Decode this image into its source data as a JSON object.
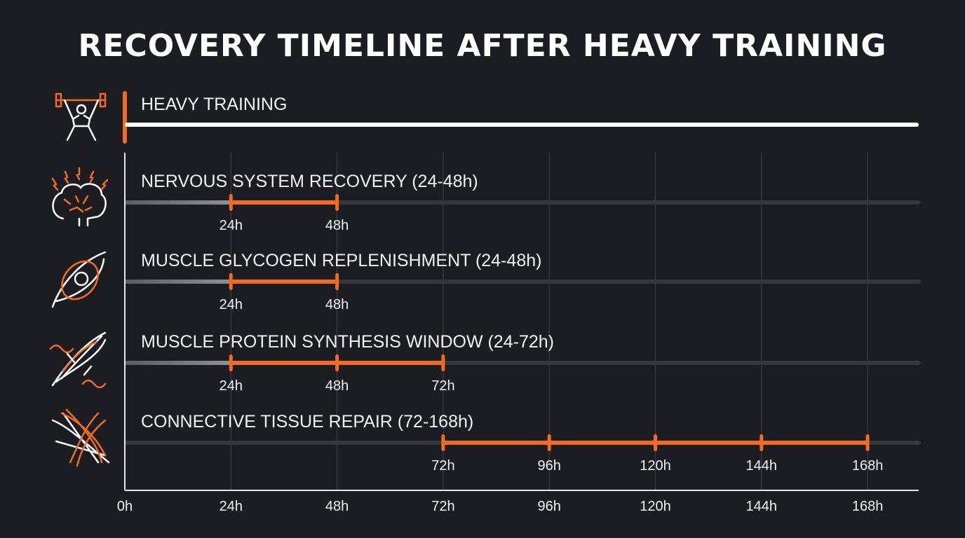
{
  "chart_data": {
    "type": "timeline",
    "title": "RECOVERY TIMELINE AFTER HEAVY TRAINING",
    "start_event": {
      "label": "HEAVY TRAINING",
      "icon": "weightlifter-icon"
    },
    "xlim": [
      0,
      180
    ],
    "x_unit": "h",
    "x_ticks": [
      "0h",
      "24h",
      "48h",
      "72h",
      "96h",
      "120h",
      "144h",
      "168h"
    ],
    "x_tick_values": [
      0,
      24,
      48,
      72,
      96,
      120,
      144,
      168
    ],
    "grid": true,
    "series": [
      {
        "name": "NERVOUS SYSTEM RECOVERY (24-48h)",
        "icon": "brain-icon",
        "start": 24,
        "end": 48,
        "markers": [
          24,
          48
        ],
        "marker_labels": [
          "24h",
          "48h"
        ],
        "lead_in": true
      },
      {
        "name": "MUSCLE GLYCOGEN REPLENISHMENT (24-48h)",
        "icon": "muscle-glycogen-icon",
        "start": 24,
        "end": 48,
        "markers": [
          24,
          48
        ],
        "marker_labels": [
          "24h",
          "48h"
        ],
        "lead_in": true
      },
      {
        "name": "MUSCLE PROTEIN SYNTHESIS WINDOW (24-72h)",
        "icon": "muscle-dna-icon",
        "start": 24,
        "end": 72,
        "markers": [
          24,
          48,
          72
        ],
        "marker_labels": [
          "24h",
          "48h",
          "72h"
        ],
        "lead_in": true
      },
      {
        "name": "CONNECTIVE TISSUE REPAIR (72-168h)",
        "icon": "tendon-icon",
        "start": 72,
        "end": 168,
        "markers": [
          72,
          96,
          120,
          144,
          168
        ],
        "marker_labels": [
          "72h",
          "96h",
          "120h",
          "144h",
          "168h"
        ],
        "lead_in": false
      }
    ],
    "colors": {
      "accent": "#f26b21",
      "background": "#1b1d22",
      "track": "#34373d",
      "lead_in": "#8a8c90",
      "text": "#f2f2f2"
    }
  }
}
